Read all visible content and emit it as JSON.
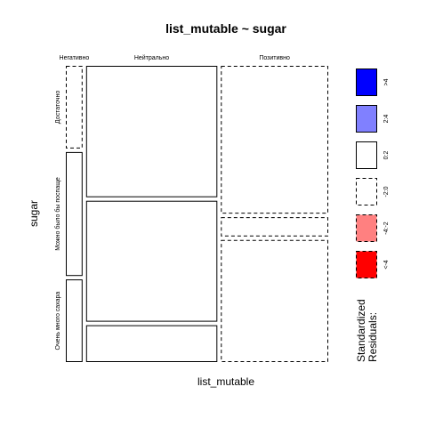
{
  "chart_data": {
    "type": "mosaic",
    "title": "list_mutable ~ sugar",
    "xlabel": "list_mutable",
    "ylabel": "sugar",
    "x_levels": [
      "Негативно",
      "Нейтрально",
      "Позитивно"
    ],
    "y_levels": [
      "Достаточно",
      "Можно было бы поспаще",
      "Очень много сахара"
    ],
    "counts": [
      [
        2,
        25,
        23
      ],
      [
        3,
        23,
        3
      ],
      [
        2,
        7,
        19
      ]
    ],
    "residual_sign": [
      [
        "negative",
        "positive",
        "negative"
      ],
      [
        "positive",
        "positive",
        "negative"
      ],
      [
        "positive",
        "positive",
        "negative"
      ]
    ],
    "shading": [
      [
        "none",
        "none",
        "none"
      ],
      [
        "none",
        "none",
        "none"
      ],
      [
        "none",
        "none",
        "none"
      ]
    ],
    "legend": {
      "title_line1": "Standardized",
      "title_line2": "Residuals:",
      "entries": [
        {
          "label": ">4",
          "fill": "#0000ff",
          "dashed": false
        },
        {
          "label": "2:4",
          "fill": "#8080ff",
          "dashed": false
        },
        {
          "label": "0:2",
          "fill": "#ffffff",
          "dashed": false
        },
        {
          "label": "-2:0",
          "fill": "#ffffff",
          "dashed": true
        },
        {
          "label": "-4:-2",
          "fill": "#ff8080",
          "dashed": true
        },
        {
          "label": "<-4",
          "fill": "#ff0000",
          "dashed": true
        }
      ]
    }
  }
}
